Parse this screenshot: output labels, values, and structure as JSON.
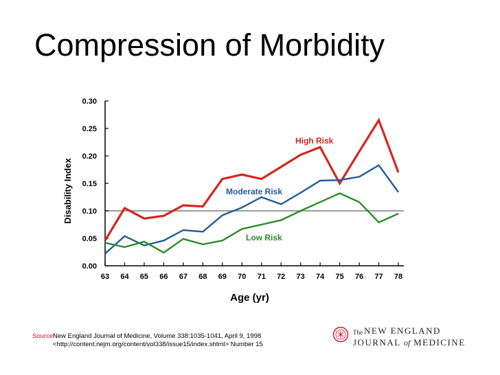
{
  "slide": {
    "title": "Compression of Morbidity"
  },
  "chart_data": {
    "type": "line",
    "title": "",
    "xlabel": "Age (yr)",
    "ylabel": "Disability Index",
    "x": [
      63,
      64,
      65,
      66,
      67,
      68,
      69,
      70,
      71,
      72,
      73,
      74,
      75,
      76,
      77,
      78
    ],
    "ylim": [
      0,
      0.3
    ],
    "yticks": [
      "0.00",
      "0.05",
      "0.10",
      "0.15",
      "0.20",
      "0.25",
      "0.30"
    ],
    "reference_line": 0.1,
    "series": [
      {
        "name": "High Risk",
        "color": "#d6251f",
        "values": [
          0.046,
          0.105,
          0.086,
          0.091,
          0.11,
          0.108,
          0.158,
          0.166,
          0.158,
          0.18,
          0.202,
          0.216,
          0.15,
          0.208,
          0.265,
          0.17
        ]
      },
      {
        "name": "Moderate Risk",
        "color": "#1f5a99",
        "values": [
          0.022,
          0.054,
          0.037,
          0.046,
          0.065,
          0.062,
          0.092,
          0.106,
          0.125,
          0.112,
          0.133,
          0.155,
          0.156,
          0.162,
          0.183,
          0.134
        ]
      },
      {
        "name": "Low Risk",
        "color": "#2a8a2a",
        "values": [
          0.042,
          0.034,
          0.044,
          0.024,
          0.049,
          0.039,
          0.046,
          0.067,
          0.075,
          0.083,
          0.1,
          0.116,
          0.132,
          0.116,
          0.079,
          0.095
        ]
      }
    ]
  },
  "source": {
    "label": "Source:",
    "line1": "New England Journal of Medicine, Volume 338:1035-1041, April 9, 1998",
    "line2": "<http://content.nejm.org/content/vol338/issue15/index.shtml> Number 15"
  },
  "logo": {
    "the": "The",
    "line1": "NEW ENGLAND",
    "line2_a": "JOURNAL ",
    "line2_of": "of",
    "line2_b": "MEDICINE"
  },
  "colors": {
    "axis": "#000000",
    "reference": "#9a9a9a",
    "source_label": "#c8102e"
  }
}
